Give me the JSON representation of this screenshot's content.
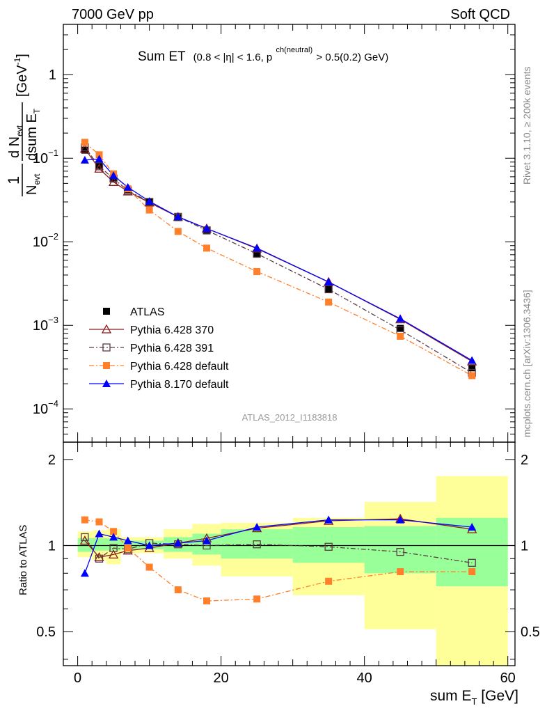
{
  "header": {
    "left": "7000 GeV pp",
    "right": "Soft QCD"
  },
  "plot_title": {
    "main": "Sum ET",
    "detail_a": "(0.8 < |η| < 1.6, p",
    "detail_sup": "ch(neutral)",
    "detail_b": " > 0.5(0.2) GeV)"
  },
  "side_labels": {
    "rivet": "Rivet 3.1.10, ≥ 200k events",
    "mcplots": "mcplots.cern.ch [arXiv:1306.3436]"
  },
  "watermark": "ATLAS_2012_I1183818",
  "axes": {
    "top_ylabel": {
      "bracket_left": "[GeV",
      "bracket_sup": "-1",
      "bracket_right": "]"
    },
    "bottom_ylabel": "Ratio to ATLAS",
    "xlabel": {
      "prefix": "sum E",
      "sub": "T",
      "suffix": " [GeV]"
    }
  },
  "colors": {
    "atlas": "#000000",
    "py6_370": "#8b1a1a",
    "py6_391": "#5a3a45",
    "py6_default": "#ff7f2a",
    "py8_default": "#0000ff",
    "band_green": "#99ff99",
    "band_yellow": "#ffff99"
  },
  "chart_data": [
    {
      "type": "line",
      "xlabel": "sum E_T [GeV]",
      "ylabel": "1/N_evt dN_evt/dsum E_T [GeV^-1]",
      "xlim": [
        -2,
        61
      ],
      "ylim": [
        4e-05,
        4
      ],
      "yscale": "log",
      "yticks": [
        {
          "v": 0.0001,
          "base": "10",
          "exp": "−4"
        },
        {
          "v": 0.001,
          "base": "10",
          "exp": "−3"
        },
        {
          "v": 0.01,
          "base": "10",
          "exp": "−2"
        },
        {
          "v": 0.1,
          "base": "10",
          "exp": "−1"
        },
        {
          "v": 1,
          "base": "1",
          "exp": ""
        }
      ],
      "legend_position": "bottom-left",
      "series": [
        {
          "key": "atlas",
          "name": "ATLAS",
          "marker": "square",
          "line": "none",
          "x": [
            1,
            3,
            5,
            7,
            10,
            14,
            18,
            25,
            35,
            45,
            55
          ],
          "y": [
            0.125,
            0.082,
            0.058,
            0.042,
            0.03,
            0.0195,
            0.0135,
            0.0071,
            0.0027,
            0.00092,
            0.00031
          ]
        },
        {
          "key": "py6_370",
          "name": "Pythia 6.428 370",
          "marker": "open-triangle",
          "line": "solid",
          "x": [
            1,
            3,
            5,
            7,
            10,
            14,
            18,
            25,
            35,
            45,
            55
          ],
          "y": [
            0.13,
            0.075,
            0.052,
            0.04,
            0.0295,
            0.0198,
            0.0144,
            0.0083,
            0.0033,
            0.00118,
            0.00037
          ]
        },
        {
          "key": "py6_391",
          "name": "Pythia 6.428 391",
          "marker": "open-square",
          "line": "dashdot",
          "x": [
            1,
            3,
            5,
            7,
            10,
            14,
            18,
            25,
            35,
            45,
            55
          ],
          "y": [
            0.135,
            0.08,
            0.057,
            0.041,
            0.03,
            0.0199,
            0.0137,
            0.0072,
            0.0027,
            0.00088,
            0.00027
          ]
        },
        {
          "key": "py6_default",
          "name": "Pythia 6.428 default",
          "marker": "square",
          "line": "dashdot",
          "x": [
            1,
            3,
            5,
            7,
            10,
            14,
            18,
            25,
            35,
            45,
            55
          ],
          "y": [
            0.155,
            0.11,
            0.065,
            0.043,
            0.024,
            0.0133,
            0.0084,
            0.0044,
            0.0019,
            0.00074,
            0.00025
          ]
        },
        {
          "key": "py8_default",
          "name": "Pythia 8.170 default",
          "marker": "triangle",
          "line": "solid",
          "x": [
            1,
            3,
            5,
            7,
            10,
            14,
            18,
            25,
            35,
            45,
            55
          ],
          "y": [
            0.095,
            0.098,
            0.062,
            0.045,
            0.0305,
            0.0199,
            0.0144,
            0.0084,
            0.0033,
            0.0012,
            0.00038
          ]
        }
      ]
    },
    {
      "type": "line",
      "xlabel": "sum E_T [GeV]",
      "ylabel": "Ratio to ATLAS",
      "xlim": [
        -2,
        61
      ],
      "ylim": [
        0.38,
        2.3
      ],
      "yscale": "log",
      "xticks": [
        0,
        20,
        40,
        60
      ],
      "yticks": [
        0.5,
        1,
        2
      ],
      "reference_line": 1,
      "bands": {
        "edges": [
          0,
          2,
          4,
          6,
          8,
          12,
          16,
          20,
          30,
          40,
          50,
          60
        ],
        "green": [
          [
            0.95,
            1.06
          ],
          [
            0.96,
            1.06
          ],
          [
            0.96,
            1.06
          ],
          [
            0.97,
            1.04
          ],
          [
            0.97,
            1.04
          ],
          [
            0.95,
            1.07
          ],
          [
            0.93,
            1.1
          ],
          [
            0.9,
            1.14
          ],
          [
            0.87,
            1.16
          ],
          [
            0.8,
            1.17
          ],
          [
            0.72,
            1.25
          ]
        ],
        "yellow": [
          [
            0.91,
            1.12
          ],
          [
            0.89,
            1.13
          ],
          [
            0.86,
            1.14
          ],
          [
            0.94,
            1.07
          ],
          [
            0.94,
            1.07
          ],
          [
            0.9,
            1.14
          ],
          [
            0.85,
            1.19
          ],
          [
            0.78,
            1.2
          ],
          [
            0.67,
            1.25
          ],
          [
            0.51,
            1.42
          ],
          [
            0.36,
            1.75
          ]
        ]
      },
      "series": [
        {
          "key": "py6_370",
          "name": "Pythia 6.428 370",
          "marker": "open-triangle",
          "line": "solid",
          "x": [
            1,
            3,
            5,
            7,
            10,
            14,
            18,
            25,
            35,
            45,
            55
          ],
          "y": [
            1.04,
            0.91,
            0.93,
            0.96,
            0.98,
            1.02,
            1.06,
            1.15,
            1.22,
            1.24,
            1.14
          ]
        },
        {
          "key": "py6_391",
          "name": "Pythia 6.428 391",
          "marker": "open-square",
          "line": "dashdot",
          "x": [
            1,
            3,
            5,
            7,
            10,
            14,
            18,
            25,
            35,
            45,
            55
          ],
          "y": [
            1.07,
            0.9,
            0.98,
            0.97,
            1.02,
            1.01,
            1.0,
            1.01,
            0.99,
            0.95,
            0.87
          ]
        },
        {
          "key": "py6_default",
          "name": "Pythia 6.428 default",
          "marker": "square",
          "line": "dashdot",
          "x": [
            1,
            3,
            5,
            7,
            10,
            14,
            18,
            25,
            35,
            45,
            55
          ],
          "y": [
            1.23,
            1.21,
            1.12,
            0.98,
            0.84,
            0.7,
            0.64,
            0.65,
            0.75,
            0.81,
            0.81
          ]
        },
        {
          "key": "py8_default",
          "name": "Pythia 8.170 default",
          "marker": "triangle",
          "line": "solid",
          "x": [
            1,
            3,
            5,
            7,
            10,
            14,
            18,
            25,
            35,
            45,
            55
          ],
          "y": [
            0.8,
            1.1,
            1.07,
            1.04,
            1.0,
            1.02,
            1.04,
            1.16,
            1.23,
            1.23,
            1.16
          ]
        }
      ]
    }
  ]
}
